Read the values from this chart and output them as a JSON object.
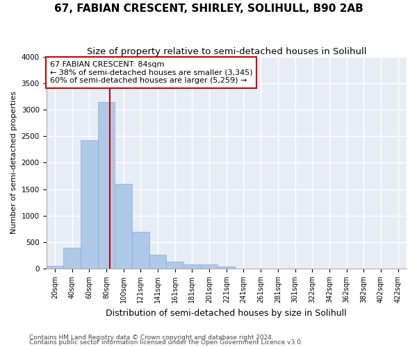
{
  "title": "67, FABIAN CRESCENT, SHIRLEY, SOLIHULL, B90 2AB",
  "subtitle": "Size of property relative to semi-detached houses in Solihull",
  "xlabel": "Distribution of semi-detached houses by size in Solihull",
  "ylabel": "Number of semi-detached properties",
  "footer1": "Contains HM Land Registry data © Crown copyright and database right 2024.",
  "footer2": "Contains public sector information licensed under the Open Government Licence v3.0.",
  "bin_labels": [
    "20sqm",
    "40sqm",
    "60sqm",
    "80sqm",
    "100sqm",
    "121sqm",
    "141sqm",
    "161sqm",
    "181sqm",
    "201sqm",
    "221sqm",
    "241sqm",
    "261sqm",
    "281sqm",
    "301sqm",
    "322sqm",
    "342sqm",
    "362sqm",
    "382sqm",
    "402sqm",
    "422sqm"
  ],
  "bar_values": [
    50,
    390,
    2420,
    3150,
    1600,
    700,
    265,
    130,
    75,
    75,
    45,
    0,
    0,
    0,
    0,
    0,
    0,
    0,
    0,
    0,
    0
  ],
  "bar_color": "#aec8e8",
  "bar_edge_color": "#88aad4",
  "vline_color": "#cc0000",
  "vline_x_index": 3.2,
  "annotation_text": "67 FABIAN CRESCENT: 84sqm\n← 38% of semi-detached houses are smaller (3,345)\n60% of semi-detached houses are larger (5,259) →",
  "annotation_box_color": "#ffffff",
  "annotation_border_color": "#cc0000",
  "ylim": [
    0,
    4000
  ],
  "yticks": [
    0,
    500,
    1000,
    1500,
    2000,
    2500,
    3000,
    3500,
    4000
  ],
  "bg_color": "#e8edf5",
  "grid_color": "#ffffff",
  "title_fontsize": 11,
  "subtitle_fontsize": 9.5,
  "xlabel_fontsize": 9,
  "ylabel_fontsize": 8,
  "tick_fontsize": 7,
  "footer_fontsize": 6.5,
  "annotation_fontsize": 8
}
